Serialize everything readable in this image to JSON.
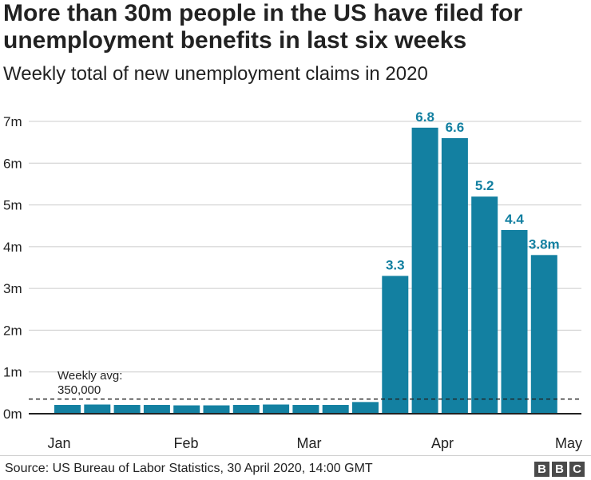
{
  "chart_data": {
    "type": "bar",
    "title": "More than 30m people in the US have filed for unemployment benefits in last six weeks",
    "subtitle": "Weekly total of new unemployment claims in 2020",
    "ylabel": "",
    "xlabel": "",
    "ylim": [
      0,
      7
    ],
    "yticks": [
      0,
      1,
      2,
      3,
      4,
      5,
      6,
      7
    ],
    "ytick_labels": [
      "0m",
      "1m",
      "2m",
      "3m",
      "4m",
      "5m",
      "6m",
      "7m"
    ],
    "xtick_labels": [
      "Jan",
      "Feb",
      "Mar",
      "Apr",
      "May"
    ],
    "values": [
      0.21,
      0.22,
      0.21,
      0.21,
      0.2,
      0.2,
      0.21,
      0.22,
      0.21,
      0.21,
      0.28,
      3.3,
      6.85,
      6.6,
      5.2,
      4.4,
      3.8
    ],
    "data_labels": [
      "",
      "",
      "",
      "",
      "",
      "",
      "",
      "",
      "",
      "",
      "",
      "3.3",
      "6.8",
      "6.6",
      "5.2",
      "4.4",
      "3.8m"
    ],
    "reference_line": {
      "value": 0.35,
      "label_line1": "Weekly avg:",
      "label_line2": "350,000"
    },
    "colors": {
      "bar": "#1380a1",
      "label": "#1380a1",
      "grid": "#cccccc",
      "axis": "#222222"
    }
  },
  "source": "Source: US Bureau of Labor Statistics, 30 April 2020, 14:00 GMT",
  "logo": {
    "letters": [
      "B",
      "B",
      "C"
    ]
  }
}
